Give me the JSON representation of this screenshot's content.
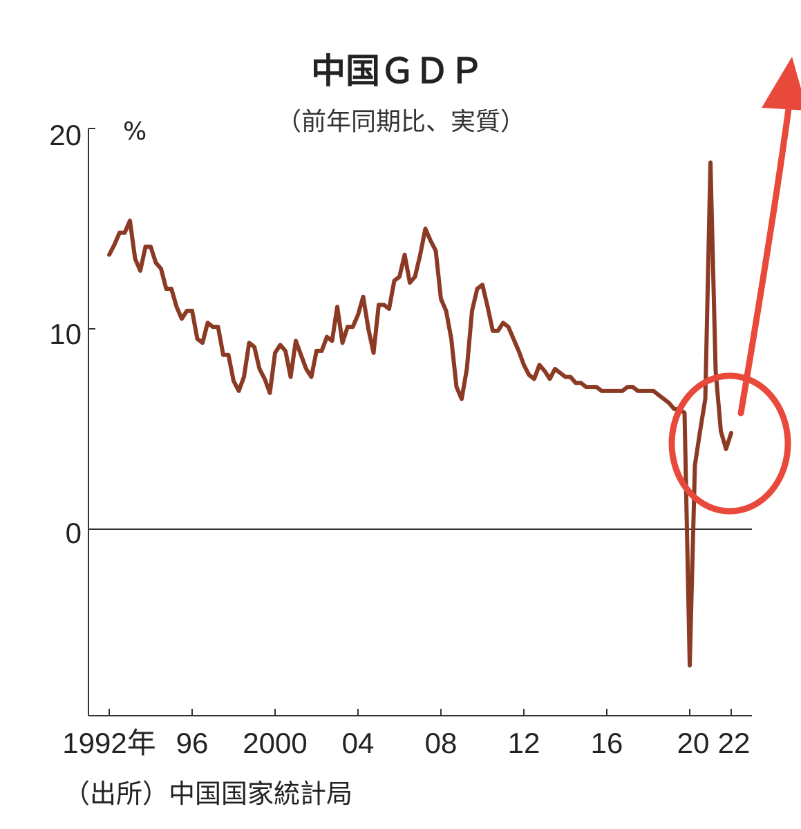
{
  "chart_data": {
    "type": "line",
    "title": "中国ＧＤＰ",
    "subtitle": "（前年同期比、実質）",
    "ylabel": "%",
    "ylim": [
      -9,
      21
    ],
    "yticks": [
      "20",
      "10",
      "0"
    ],
    "xtick_labels": [
      "1992年",
      "96",
      "2000",
      "04",
      "08",
      "12",
      "16",
      "20",
      "22"
    ],
    "source": "（出所）中国国家統計局",
    "grid": false,
    "series": [
      {
        "color": "#8B3A24",
        "x": [
          1992.0,
          1992.25,
          1992.5,
          1992.75,
          1993.0,
          1993.25,
          1993.5,
          1993.75,
          1994.0,
          1994.25,
          1994.5,
          1994.75,
          1995.0,
          1995.25,
          1995.5,
          1995.75,
          1996.0,
          1996.25,
          1996.5,
          1996.75,
          1997.0,
          1997.25,
          1997.5,
          1997.75,
          1998.0,
          1998.25,
          1998.5,
          1998.75,
          1999.0,
          1999.25,
          1999.5,
          1999.75,
          2000.0,
          2000.25,
          2000.5,
          2000.75,
          2001.0,
          2001.25,
          2001.5,
          2001.75,
          2002.0,
          2002.25,
          2002.5,
          2002.75,
          2003.0,
          2003.25,
          2003.5,
          2003.75,
          2004.0,
          2004.25,
          2004.5,
          2004.75,
          2005.0,
          2005.25,
          2005.5,
          2005.75,
          2006.0,
          2006.25,
          2006.5,
          2006.75,
          2007.0,
          2007.25,
          2007.5,
          2007.75,
          2008.0,
          2008.25,
          2008.5,
          2008.75,
          2009.0,
          2009.25,
          2009.5,
          2009.75,
          2010.0,
          2010.25,
          2010.5,
          2010.75,
          2011.0,
          2011.25,
          2011.5,
          2011.75,
          2012.0,
          2012.25,
          2012.5,
          2012.75,
          2013.0,
          2013.25,
          2013.5,
          2013.75,
          2014.0,
          2014.25,
          2014.5,
          2014.75,
          2015.0,
          2015.25,
          2015.5,
          2015.75,
          2016.0,
          2016.25,
          2016.5,
          2016.75,
          2017.0,
          2017.25,
          2017.5,
          2017.75,
          2018.0,
          2018.25,
          2018.5,
          2018.75,
          2019.0,
          2019.25,
          2019.5,
          2019.75,
          2020.0,
          2020.25,
          2020.5,
          2020.75,
          2021.0,
          2021.25,
          2021.5,
          2021.75,
          2022.0
        ],
        "values": [
          13.7,
          14.2,
          14.8,
          14.8,
          15.4,
          13.5,
          12.9,
          14.1,
          14.1,
          13.3,
          13.0,
          12.0,
          12.0,
          11.1,
          10.5,
          10.9,
          10.9,
          9.5,
          9.3,
          10.3,
          10.1,
          10.1,
          8.7,
          8.7,
          7.4,
          6.9,
          7.6,
          9.3,
          9.1,
          8.0,
          7.5,
          6.8,
          8.8,
          9.2,
          8.9,
          7.6,
          9.4,
          8.7,
          8.0,
          7.6,
          8.9,
          8.9,
          9.6,
          9.4,
          11.1,
          9.3,
          10.1,
          10.1,
          10.7,
          11.6,
          10.0,
          8.8,
          11.2,
          11.2,
          11.0,
          12.4,
          12.6,
          13.7,
          12.3,
          12.6,
          13.7,
          15.0,
          14.4,
          13.9,
          11.5,
          10.9,
          9.5,
          7.1,
          6.5,
          8.0,
          10.9,
          12.0,
          12.2,
          11.1,
          9.9,
          9.9,
          10.3,
          10.1,
          9.5,
          8.9,
          8.2,
          7.7,
          7.5,
          8.2,
          7.9,
          7.5,
          8.0,
          7.8,
          7.6,
          7.6,
          7.3,
          7.3,
          7.1,
          7.1,
          7.1,
          6.9,
          6.9,
          6.9,
          6.9,
          6.9,
          7.1,
          7.1,
          6.9,
          6.9,
          6.9,
          6.9,
          6.7,
          6.5,
          6.3,
          6.0,
          6.0,
          5.8,
          -6.8,
          3.2,
          4.9,
          6.5,
          18.3,
          7.9,
          4.9,
          4.0,
          4.8
        ]
      }
    ],
    "annotation": {
      "circle_color": "#E8493A",
      "arrow_color": "#E8493A"
    }
  }
}
